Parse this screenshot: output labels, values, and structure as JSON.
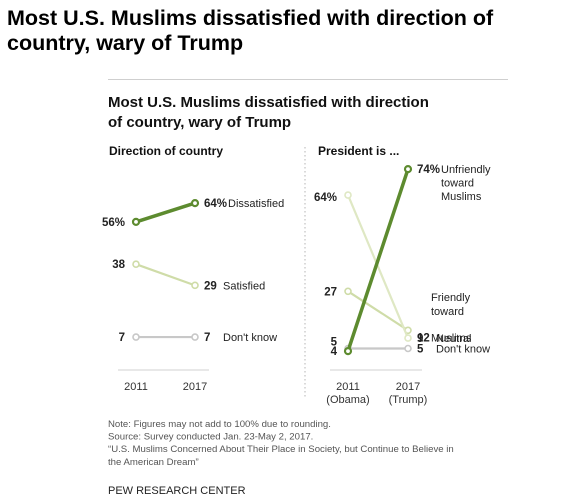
{
  "page": {
    "headline": "Most U.S. Muslims dissatisfied with direction of country, wary of Trump"
  },
  "chart_data": {
    "title_lines": [
      "Most U.S. Muslims dissatisfied with direction",
      "of country, wary of Trump"
    ],
    "panels": [
      {
        "id": "direction",
        "type": "line",
        "subtitle": "Direction of country",
        "x": [
          "2011",
          "2017"
        ],
        "series": [
          {
            "name": "Dissatisfied",
            "values": [
              56,
              64
            ],
            "start_label": "56%",
            "end_label": "64%",
            "end_text": [
              "Dissatisfied"
            ],
            "color": "#5d8b2f",
            "weight": "bold"
          },
          {
            "name": "Satisfied",
            "values": [
              38,
              29
            ],
            "start_label": "38",
            "end_label": "29",
            "end_text": [
              "Satisfied"
            ],
            "color": "#cfdca8",
            "weight": "light"
          },
          {
            "name": "Don't know",
            "values": [
              7,
              7
            ],
            "start_label": "7",
            "end_label": "7",
            "end_text": [
              "Don't know"
            ],
            "color": "#c8c8c8",
            "weight": "light"
          }
        ]
      },
      {
        "id": "president",
        "type": "line",
        "subtitle": "President is ...",
        "x": [
          "2011",
          "2017"
        ],
        "x_sub": [
          "(Obama)",
          "(Trump)"
        ],
        "series": [
          {
            "name": "Unfriendly toward Muslims",
            "values": [
              4,
              74
            ],
            "start_label": "4",
            "end_label": "74%",
            "end_text": [
              "Unfriendly",
              "toward",
              "Muslims"
            ],
            "color": "#5d8b2f",
            "weight": "bold"
          },
          {
            "name": "Friendly toward Muslims",
            "values": [
              27,
              12
            ],
            "start_label": "27",
            "end_label": "12",
            "end_text": [
              "Friendly",
              "toward",
              "Muslims"
            ],
            "color": "#cfdca8",
            "weight": "light"
          },
          {
            "name": "Neutral",
            "values": [
              64,
              9
            ],
            "start_label": "64%",
            "end_label": "9",
            "end_text": [
              "Neutral"
            ],
            "color": "#dfe8c4",
            "weight": "light"
          },
          {
            "name": "Don't know",
            "values": [
              5,
              5
            ],
            "start_label": "5",
            "end_label": "5",
            "end_text": [
              "Don't know"
            ],
            "color": "#c8c8c8",
            "weight": "light"
          }
        ]
      }
    ],
    "notes": [
      "Note: Figures may not add to 100% due to rounding.",
      "Source: Survey conducted Jan. 23-May 2, 2017.",
      "“U.S. Muslims Concerned About Their Place in Society, but Continue to Believe in",
      "the American Dream”"
    ],
    "source": "PEW RESEARCH CENTER",
    "colors": {
      "highlight": "#5d8b2f",
      "muted": "#cfdca8",
      "neutral": "#c8c8c8",
      "text": "#111111",
      "note": "#555555"
    }
  }
}
